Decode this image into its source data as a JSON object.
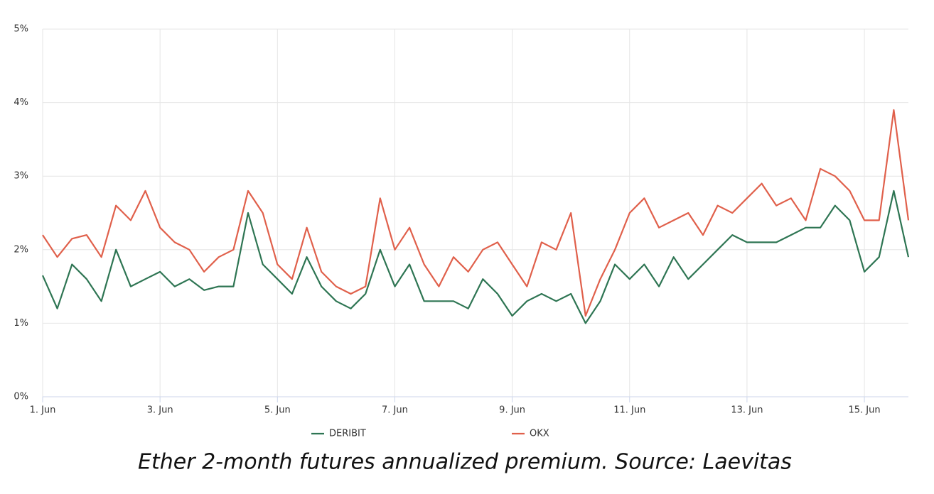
{
  "chart_data": {
    "type": "line",
    "caption": "Ether 2-month futures annualized premium. Source: Laevitas",
    "x": [
      1,
      1.25,
      1.5,
      1.75,
      2,
      2.25,
      2.5,
      2.75,
      3,
      3.25,
      3.5,
      3.75,
      4,
      4.25,
      4.5,
      4.75,
      5,
      5.25,
      5.5,
      5.75,
      6,
      6.25,
      6.5,
      6.75,
      7,
      7.25,
      7.5,
      7.75,
      8,
      8.25,
      8.5,
      8.75,
      9,
      9.25,
      9.5,
      9.75,
      10,
      10.25,
      10.5,
      10.75,
      11,
      11.25,
      11.5,
      11.75,
      12,
      12.25,
      12.5,
      12.75,
      13,
      13.25,
      13.5,
      13.75,
      14,
      14.25,
      14.5,
      14.75,
      15,
      15.25,
      15.5,
      15.75
    ],
    "series": [
      {
        "name": "DERIBIT",
        "color": "#2e7553",
        "values": [
          1.65,
          1.2,
          1.8,
          1.6,
          1.3,
          2.0,
          1.5,
          1.6,
          1.7,
          1.5,
          1.6,
          1.45,
          1.5,
          1.5,
          2.5,
          1.8,
          1.6,
          1.4,
          1.9,
          1.5,
          1.3,
          1.2,
          1.4,
          2.0,
          1.5,
          1.8,
          1.3,
          1.3,
          1.3,
          1.2,
          1.6,
          1.4,
          1.1,
          1.3,
          1.4,
          1.3,
          1.4,
          1.0,
          1.3,
          1.8,
          1.6,
          1.8,
          1.5,
          1.9,
          1.6,
          1.8,
          2.0,
          2.2,
          2.1,
          2.1,
          2.1,
          2.2,
          2.3,
          2.3,
          2.6,
          2.4,
          1.7,
          1.9,
          2.8,
          1.9
        ]
      },
      {
        "name": "OKX",
        "color": "#e0604b",
        "values": [
          2.2,
          1.9,
          2.15,
          2.2,
          1.9,
          2.6,
          2.4,
          2.8,
          2.3,
          2.1,
          2.0,
          1.7,
          1.9,
          2.0,
          2.8,
          2.5,
          1.8,
          1.6,
          2.3,
          1.7,
          1.5,
          1.4,
          1.5,
          2.7,
          2.0,
          2.3,
          1.8,
          1.5,
          1.9,
          1.7,
          2.0,
          2.1,
          1.8,
          1.5,
          2.1,
          2.0,
          2.5,
          1.1,
          1.6,
          2.0,
          2.5,
          2.7,
          2.3,
          2.4,
          2.5,
          2.2,
          2.6,
          2.5,
          2.7,
          2.9,
          2.6,
          2.7,
          2.4,
          3.1,
          3.0,
          2.8,
          2.4,
          2.4,
          3.9,
          2.4
        ]
      }
    ],
    "xlim": [
      1,
      15.75
    ],
    "xticks": [
      {
        "value": 1,
        "label": "1. Jun"
      },
      {
        "value": 3,
        "label": "3. Jun"
      },
      {
        "value": 5,
        "label": "5. Jun"
      },
      {
        "value": 7,
        "label": "7. Jun"
      },
      {
        "value": 9,
        "label": "9. Jun"
      },
      {
        "value": 11,
        "label": "11. Jun"
      },
      {
        "value": 13,
        "label": "13. Jun"
      },
      {
        "value": 15,
        "label": "15. Jun"
      }
    ],
    "ylim": [
      0,
      5
    ],
    "yticks": [
      {
        "value": 0,
        "label": "0%"
      },
      {
        "value": 1,
        "label": "1%"
      },
      {
        "value": 2,
        "label": "2%"
      },
      {
        "value": 3,
        "label": "3%"
      },
      {
        "value": 4,
        "label": "4%"
      },
      {
        "value": 5,
        "label": "5%"
      }
    ],
    "grid": true
  }
}
